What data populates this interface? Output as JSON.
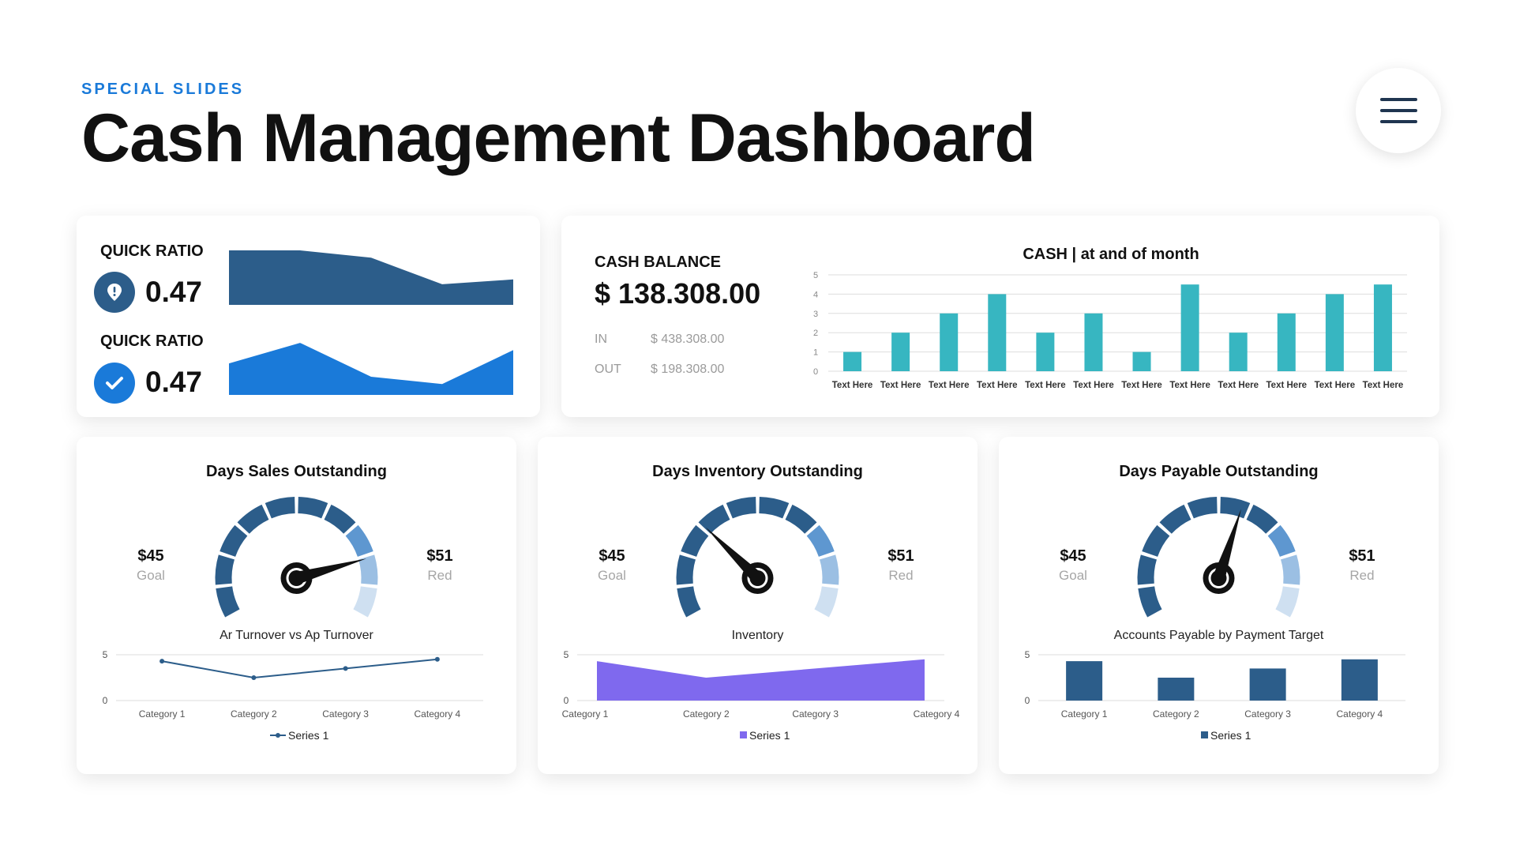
{
  "header": {
    "eyebrow": "SPECIAL SLIDES",
    "title": "Cash Management Dashboard"
  },
  "menu": {
    "icon": "hamburger-menu-icon"
  },
  "quick_ratio": [
    {
      "label": "QUICK RATIO",
      "value": "0.47",
      "icon": "alert-pin-icon",
      "color": "#2c5d8a"
    },
    {
      "label": "QUICK RATIO",
      "value": "0.47",
      "icon": "check-icon",
      "color": "#1a7ad9"
    }
  ],
  "cash_balance": {
    "label": "CASH BALANCE",
    "value": "$ 138.308.00",
    "in_label": "IN",
    "in_value": "$ 438.308.00",
    "out_label": "OUT",
    "out_value": "$ 198.308.00"
  },
  "gauges": [
    {
      "title": "Days Sales Outstanding",
      "goal_value": "$45",
      "goal_label": "Goal",
      "red_value": "$51",
      "red_label": "Red",
      "needle_level": 0.81
    },
    {
      "title": "Days Inventory Outstanding",
      "goal_value": "$45",
      "goal_label": "Goal",
      "red_value": "$51",
      "red_label": "Red",
      "needle_level": 0.31
    },
    {
      "title": "Days Payable Outstanding",
      "goal_value": "$45",
      "goal_label": "Goal",
      "red_value": "$51",
      "red_label": "Red",
      "needle_level": 0.575
    }
  ],
  "gauge_colors": [
    "#2c5d8a",
    "#2c5d8a",
    "#2c5d8a",
    "#2c5d8a",
    "#2c5d8a",
    "#2c5d8a",
    "#2c5d8a",
    "#5e97d0",
    "#9bbfe3",
    "#cfe0f1"
  ],
  "chart_data": [
    {
      "type": "area",
      "values": [
        4.5,
        4.5,
        3.9,
        1.7,
        2.1
      ],
      "ylim": [
        0,
        4.5
      ],
      "color": "#2c5d8a"
    },
    {
      "type": "area",
      "values": [
        2.6,
        4.3,
        1.5,
        0.9,
        3.7
      ],
      "ylim": [
        0,
        4.5
      ],
      "color": "#1a7ad9"
    },
    {
      "type": "bar",
      "title": "CASH | at and of month",
      "categories": [
        "Text Here",
        "Text Here",
        "Text Here",
        "Text Here",
        "Text Here",
        "Text Here",
        "Text Here",
        "Text Here",
        "Text Here",
        "Text Here",
        "Text Here",
        "Text Here"
      ],
      "values": [
        1,
        2,
        3,
        4,
        2,
        3,
        1,
        4.5,
        2,
        3,
        4,
        4.5
      ],
      "ylim": [
        0,
        5
      ],
      "yticks": [
        0,
        1,
        2,
        3,
        4,
        5
      ],
      "grid": true,
      "color": "#37b6c1"
    },
    {
      "type": "line",
      "title": "Ar Turnover vs Ap Turnover",
      "categories": [
        "Category 1",
        "Category 2",
        "Category 3",
        "Category 4"
      ],
      "series": [
        {
          "name": "Series 1",
          "values": [
            4.3,
            2.5,
            3.5,
            4.5
          ]
        }
      ],
      "ylim": [
        0,
        5
      ],
      "yticks": [
        0,
        5
      ],
      "grid": true,
      "legend": "bottom",
      "color": "#2c5d8a"
    },
    {
      "type": "area",
      "title": "Inventory",
      "categories": [
        "Category 1",
        "Category 2",
        "Category 3",
        "Category 4"
      ],
      "series": [
        {
          "name": "Series 1",
          "values": [
            4.3,
            2.5,
            3.5,
            4.5
          ]
        }
      ],
      "ylim": [
        0,
        5
      ],
      "yticks": [
        0,
        5
      ],
      "grid": true,
      "legend": "bottom",
      "color": "#7f69ee"
    },
    {
      "type": "bar",
      "title": "Accounts Payable by Payment Target",
      "categories": [
        "Category 1",
        "Category 2",
        "Category 3",
        "Category 4"
      ],
      "series": [
        {
          "name": "Series 1",
          "values": [
            4.3,
            2.5,
            3.5,
            4.5
          ]
        }
      ],
      "ylim": [
        0,
        5
      ],
      "yticks": [
        0,
        5
      ],
      "grid": true,
      "legend": "bottom",
      "color": "#2c5d8a"
    }
  ]
}
